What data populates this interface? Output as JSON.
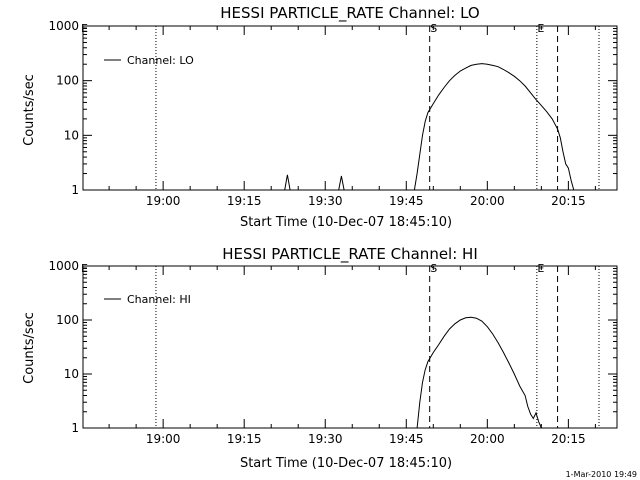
{
  "chart_data": [
    {
      "type": "line",
      "title": "HESSI PARTICLE_RATE Channel: LO",
      "xlabel": "Start Time (10-Dec-07 18:45:10)",
      "ylabel": "Counts/sec",
      "yscale": "log",
      "ylim": [
        1,
        1000
      ],
      "xlim": [
        "18:45:10",
        "20:24:00"
      ],
      "x_ticks": [
        "19:00",
        "19:15",
        "19:30",
        "19:45",
        "20:00",
        "20:15"
      ],
      "y_ticks": [
        "1",
        "10",
        "100",
        "1000"
      ],
      "grid": false,
      "legend": {
        "position": "top-left",
        "entries": [
          "Channel: LO"
        ]
      },
      "markers": [
        {
          "time": "18:58:40",
          "style": "dotted",
          "label": ""
        },
        {
          "time": "19:49:20",
          "style": "dashed",
          "label": "S"
        },
        {
          "time": "20:09:10",
          "style": "dotted",
          "label": "E"
        },
        {
          "time": "20:13:00",
          "style": "dashed",
          "label": ""
        },
        {
          "time": "20:20:40",
          "style": "dotted",
          "label": ""
        }
      ],
      "series": [
        {
          "name": "Channel: LO",
          "x": [
            "19:22:30",
            "19:23:00",
            "19:23:30",
            "19:24:00",
            "19:32:30",
            "19:33:00",
            "19:33:30",
            "19:34:00",
            "19:46:30",
            "19:47:00",
            "19:47:30",
            "19:48:00",
            "19:48:30",
            "19:49:00",
            "19:50:00",
            "19:51:00",
            "19:52:00",
            "19:53:00",
            "19:54:00",
            "19:55:00",
            "19:56:00",
            "19:57:00",
            "19:58:00",
            "19:59:00",
            "20:00:00",
            "20:01:00",
            "20:02:00",
            "20:03:00",
            "20:04:00",
            "20:05:00",
            "20:06:00",
            "20:07:00",
            "20:08:00",
            "20:09:00",
            "20:10:00",
            "20:11:00",
            "20:12:00",
            "20:13:00",
            "20:13:30",
            "20:14:00",
            "20:14:30",
            "20:15:00",
            "20:15:30",
            "20:16:00",
            "20:16:30"
          ],
          "y": [
            1,
            1.9,
            1,
            1,
            1,
            1.8,
            1,
            1,
            1,
            2,
            4.5,
            10,
            18,
            26,
            38,
            55,
            75,
            100,
            125,
            150,
            170,
            190,
            200,
            205,
            200,
            190,
            180,
            160,
            140,
            120,
            100,
            80,
            60,
            45,
            35,
            27,
            20,
            13,
            9,
            5,
            3,
            2.5,
            1.5,
            1,
            1
          ]
        }
      ]
    },
    {
      "type": "line",
      "title": "HESSI PARTICLE_RATE Channel: HI",
      "xlabel": "Start Time (10-Dec-07 18:45:10)",
      "ylabel": "Counts/sec",
      "yscale": "log",
      "ylim": [
        1,
        1000
      ],
      "xlim": [
        "18:45:10",
        "20:24:00"
      ],
      "x_ticks": [
        "19:00",
        "19:15",
        "19:30",
        "19:45",
        "20:00",
        "20:15"
      ],
      "y_ticks": [
        "1",
        "10",
        "100",
        "1000"
      ],
      "grid": false,
      "legend": {
        "position": "top-left",
        "entries": [
          "Channel: HI"
        ]
      },
      "markers": [
        {
          "time": "18:58:40",
          "style": "dotted",
          "label": ""
        },
        {
          "time": "19:49:20",
          "style": "dashed",
          "label": "S"
        },
        {
          "time": "20:09:10",
          "style": "dotted",
          "label": "E"
        },
        {
          "time": "20:13:00",
          "style": "dashed",
          "label": ""
        },
        {
          "time": "20:20:40",
          "style": "dotted",
          "label": ""
        }
      ],
      "series": [
        {
          "name": "Channel: HI",
          "x": [
            "19:47:00",
            "19:47:30",
            "19:48:00",
            "19:48:30",
            "19:49:00",
            "19:50:00",
            "19:51:00",
            "19:52:00",
            "19:53:00",
            "19:54:00",
            "19:55:00",
            "19:56:00",
            "19:57:00",
            "19:58:00",
            "19:59:00",
            "20:00:00",
            "20:01:00",
            "20:02:00",
            "20:03:00",
            "20:04:00",
            "20:05:00",
            "20:06:00",
            "20:07:00",
            "20:07:30",
            "20:08:00",
            "20:08:30",
            "20:09:00",
            "20:09:30",
            "20:10:00"
          ],
          "y": [
            1,
            3,
            7,
            12,
            17,
            25,
            35,
            50,
            68,
            85,
            100,
            110,
            112,
            108,
            95,
            75,
            55,
            38,
            25,
            16,
            10,
            6,
            4,
            2.5,
            1.8,
            1.5,
            1.9,
            1.3,
            1
          ]
        }
      ]
    }
  ],
  "footer": {
    "timestamp": "1-Mar-2010 19:49"
  }
}
